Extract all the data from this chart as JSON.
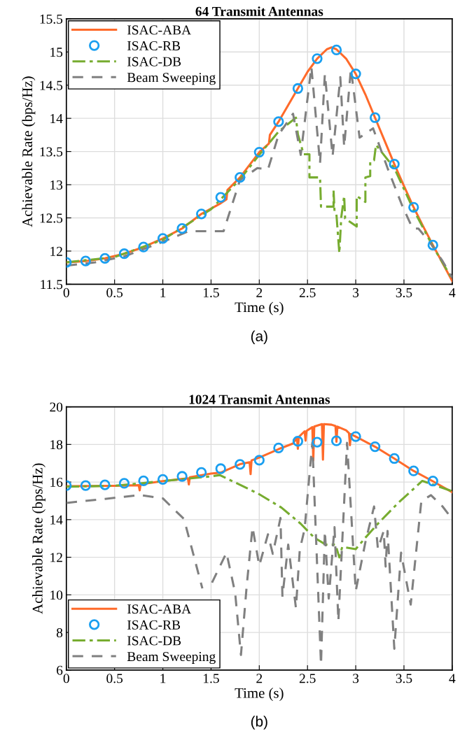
{
  "chart_data": [
    {
      "type": "line",
      "title": "64 Transmit Antennas",
      "xlabel": "Time (s)",
      "ylabel": "Achievable Rate (bps/Hz)",
      "annotations": [
        "(a)"
      ],
      "xlim": [
        0,
        4
      ],
      "ylim": [
        11.5,
        15.5
      ],
      "xticks": [
        0,
        0.5,
        1,
        1.5,
        2,
        2.5,
        3,
        3.5,
        4
      ],
      "yticks": [
        11.5,
        12,
        12.5,
        13,
        13.5,
        14,
        14.5,
        15,
        15.5
      ],
      "grid": true,
      "legend": "top left",
      "series": [
        {
          "name": "ISAC-ABA",
          "color": "#ff6a2a",
          "line_style": "solid",
          "marker": "none",
          "x": [
            0,
            0.2,
            0.4,
            0.6,
            0.8,
            1.0,
            1.2,
            1.4,
            1.6,
            1.66,
            1.67,
            1.8,
            2.0,
            2.1,
            2.11,
            2.2,
            2.4,
            2.5,
            2.6,
            2.7,
            2.75,
            2.8,
            2.9,
            3.0,
            3.1,
            3.2,
            3.3,
            3.4,
            3.5,
            3.6,
            3.7,
            3.8,
            3.9,
            4
          ],
          "values": [
            11.83,
            11.85,
            11.89,
            11.96,
            12.06,
            12.19,
            12.34,
            12.56,
            12.72,
            12.78,
            12.92,
            13.11,
            13.49,
            13.62,
            13.75,
            13.95,
            14.45,
            14.7,
            14.9,
            15.04,
            15.07,
            15.04,
            14.9,
            14.67,
            14.36,
            14.01,
            13.66,
            13.31,
            12.98,
            12.66,
            12.37,
            12.09,
            11.82,
            11.55
          ]
        },
        {
          "name": "ISAC-RB",
          "type": "scatter",
          "color": "#1a9ff0",
          "marker": "circle",
          "x": [
            0,
            0.2,
            0.4,
            0.6,
            0.8,
            1.0,
            1.2,
            1.4,
            1.6,
            1.8,
            2.0,
            2.2,
            2.4,
            2.6,
            2.8,
            3.0,
            3.2,
            3.4,
            3.6,
            3.8
          ],
          "values": [
            11.83,
            11.85,
            11.89,
            11.96,
            12.06,
            12.19,
            12.34,
            12.56,
            12.81,
            13.11,
            13.49,
            13.95,
            14.45,
            14.9,
            15.03,
            14.67,
            14.01,
            13.31,
            12.66,
            12.09
          ]
        },
        {
          "name": "ISAC-DB",
          "color": "#77ac30",
          "line_style": "dashdot",
          "marker": "none",
          "x": [
            0,
            0.5,
            1.0,
            1.5,
            1.8,
            2.0,
            2.2,
            2.38,
            2.4,
            2.46,
            2.52,
            2.52,
            2.63,
            2.64,
            2.77,
            2.77,
            2.78,
            2.8,
            2.83,
            2.85,
            2.88,
            2.89,
            3.01,
            3.01,
            3.1,
            3.1,
            3.15,
            3.15,
            3.19,
            3.21,
            3.4,
            3.6,
            3.8,
            4
          ],
          "values": [
            11.83,
            11.91,
            12.17,
            12.63,
            13.08,
            13.45,
            13.8,
            14.01,
            13.76,
            13.46,
            13.46,
            13.11,
            13.11,
            12.67,
            12.67,
            12.92,
            12.6,
            12.55,
            11.97,
            12.51,
            12.83,
            12.49,
            12.37,
            12.83,
            12.74,
            13.11,
            13.13,
            13.35,
            13.37,
            13.6,
            13.25,
            12.62,
            12.07,
            11.58
          ]
        },
        {
          "name": "Beam Sweeping",
          "color": "#808080",
          "line_style": "dashed",
          "marker": "none",
          "x": [
            0,
            0.3,
            0.6,
            1.0,
            1.27,
            1.63,
            1.8,
            1.98,
            2.09,
            2.2,
            2.35,
            2.43,
            2.54,
            2.63,
            2.68,
            2.76,
            2.84,
            2.88,
            2.95,
            3.04,
            3.18,
            3.33,
            3.48,
            3.59,
            3.65,
            3.77,
            3.9,
            4
          ],
          "values": [
            11.78,
            11.83,
            11.92,
            12.14,
            12.3,
            12.3,
            13.07,
            13.25,
            13.23,
            13.75,
            14.07,
            13.45,
            14.78,
            13.32,
            14.67,
            13.43,
            14.62,
            13.57,
            14.75,
            13.71,
            13.85,
            13.25,
            12.69,
            12.34,
            12.34,
            12.13,
            11.85,
            11.6
          ]
        }
      ]
    },
    {
      "type": "line",
      "title": "1024 Transmit Antennas",
      "xlabel": "Time (s)",
      "ylabel": "Achievable Rate (bps/Hz)",
      "annotations": [
        "(b)"
      ],
      "xlim": [
        0,
        4
      ],
      "ylim": [
        6,
        20
      ],
      "xticks": [
        0,
        0.5,
        1,
        1.5,
        2,
        2.5,
        3,
        3.5,
        4
      ],
      "yticks": [
        6,
        8,
        10,
        12,
        14,
        16,
        18,
        20
      ],
      "grid": true,
      "legend": "bottom left",
      "series": [
        {
          "name": "ISAC-ABA",
          "color": "#ff6a2a",
          "line_style": "solid",
          "marker": "none",
          "x": [
            0,
            0.5,
            0.75,
            0.76,
            0.77,
            1.0,
            1.26,
            1.27,
            1.28,
            1.5,
            1.6,
            1.8,
            1.9,
            1.91,
            1.92,
            2.0,
            2.2,
            2.35,
            2.39,
            2.4,
            2.41,
            2.47,
            2.48,
            2.49,
            2.55,
            2.56,
            2.57,
            2.65,
            2.66,
            2.67,
            2.75,
            2.79,
            2.8,
            2.81,
            2.9,
            2.93,
            2.94,
            2.95,
            3.0,
            3.2,
            3.4,
            3.6,
            3.8,
            4
          ],
          "values": [
            15.78,
            15.8,
            15.83,
            15.56,
            15.88,
            16.05,
            16.2,
            15.87,
            16.25,
            16.45,
            16.5,
            16.95,
            17.05,
            16.42,
            17.15,
            17.3,
            17.75,
            18.05,
            18.35,
            17.77,
            18.4,
            18.7,
            18.2,
            18.72,
            18.92,
            17.15,
            18.95,
            19.08,
            17.19,
            19.08,
            19.05,
            18.98,
            18.14,
            18.95,
            18.75,
            18.6,
            17.96,
            18.55,
            18.42,
            17.88,
            17.25,
            16.59,
            16.04,
            15.46
          ]
        },
        {
          "name": "ISAC-RB",
          "type": "scatter",
          "color": "#1a9ff0",
          "marker": "circle",
          "x": [
            0,
            0.2,
            0.4,
            0.6,
            0.8,
            1.0,
            1.2,
            1.4,
            1.6,
            1.8,
            2.0,
            2.2,
            2.4,
            2.6,
            2.8,
            3.0,
            3.2,
            3.4,
            3.6,
            3.8
          ],
          "values": [
            15.81,
            15.81,
            15.85,
            15.93,
            16.06,
            16.14,
            16.3,
            16.51,
            16.71,
            16.94,
            17.16,
            17.81,
            18.17,
            18.12,
            18.19,
            18.42,
            17.88,
            17.25,
            16.59,
            16.05
          ]
        },
        {
          "name": "ISAC-DB",
          "color": "#77ac30",
          "line_style": "dashdot",
          "marker": "none",
          "x": [
            0,
            0.5,
            1.0,
            1.5,
            1.59,
            1.99,
            2.23,
            2.43,
            2.57,
            2.69,
            2.79,
            2.83,
            2.86,
            3.0,
            3.1,
            3.24,
            3.44,
            3.69,
            4
          ],
          "values": [
            15.75,
            15.8,
            16.05,
            16.3,
            16.37,
            15.38,
            14.64,
            13.78,
            13.04,
            12.67,
            12.67,
            11.99,
            12.55,
            12.43,
            13.04,
            13.84,
            14.89,
            16.06,
            15.51
          ]
        },
        {
          "name": "Beam Sweeping",
          "color": "#808080",
          "line_style": "dashed",
          "marker": "none",
          "x": [
            0,
            0.4,
            0.76,
            1.0,
            1.22,
            1.41,
            1.46,
            1.51,
            1.66,
            1.75,
            1.81,
            1.87,
            1.93,
            2.0,
            2.09,
            2.14,
            2.22,
            2.24,
            2.3,
            2.38,
            2.42,
            2.47,
            2.55,
            2.64,
            2.68,
            2.72,
            2.78,
            2.82,
            2.91,
            3.0,
            3.1,
            3.19,
            3.23,
            3.29,
            3.31,
            3.33,
            3.4,
            3.47,
            3.57,
            3.68,
            3.78,
            3.9,
            4
          ],
          "values": [
            14.89,
            15.1,
            15.31,
            15.13,
            14.03,
            10.34,
            null,
            10.65,
            12.24,
            10.1,
            6.8,
            10.5,
            13.6,
            11.55,
            13.22,
            12.18,
            14.09,
            9.9,
            12.67,
            9.3,
            12.4,
            13.5,
            18.09,
            6.28,
            13.4,
            9.8,
            13.6,
            8.6,
            18.09,
            10.2,
            12.8,
            14.7,
            12.43,
            13.4,
            11.5,
            13.4,
            7.13,
            12.24,
            9.48,
            14.99,
            15.3,
            14.7,
            14.03
          ]
        }
      ]
    }
  ]
}
